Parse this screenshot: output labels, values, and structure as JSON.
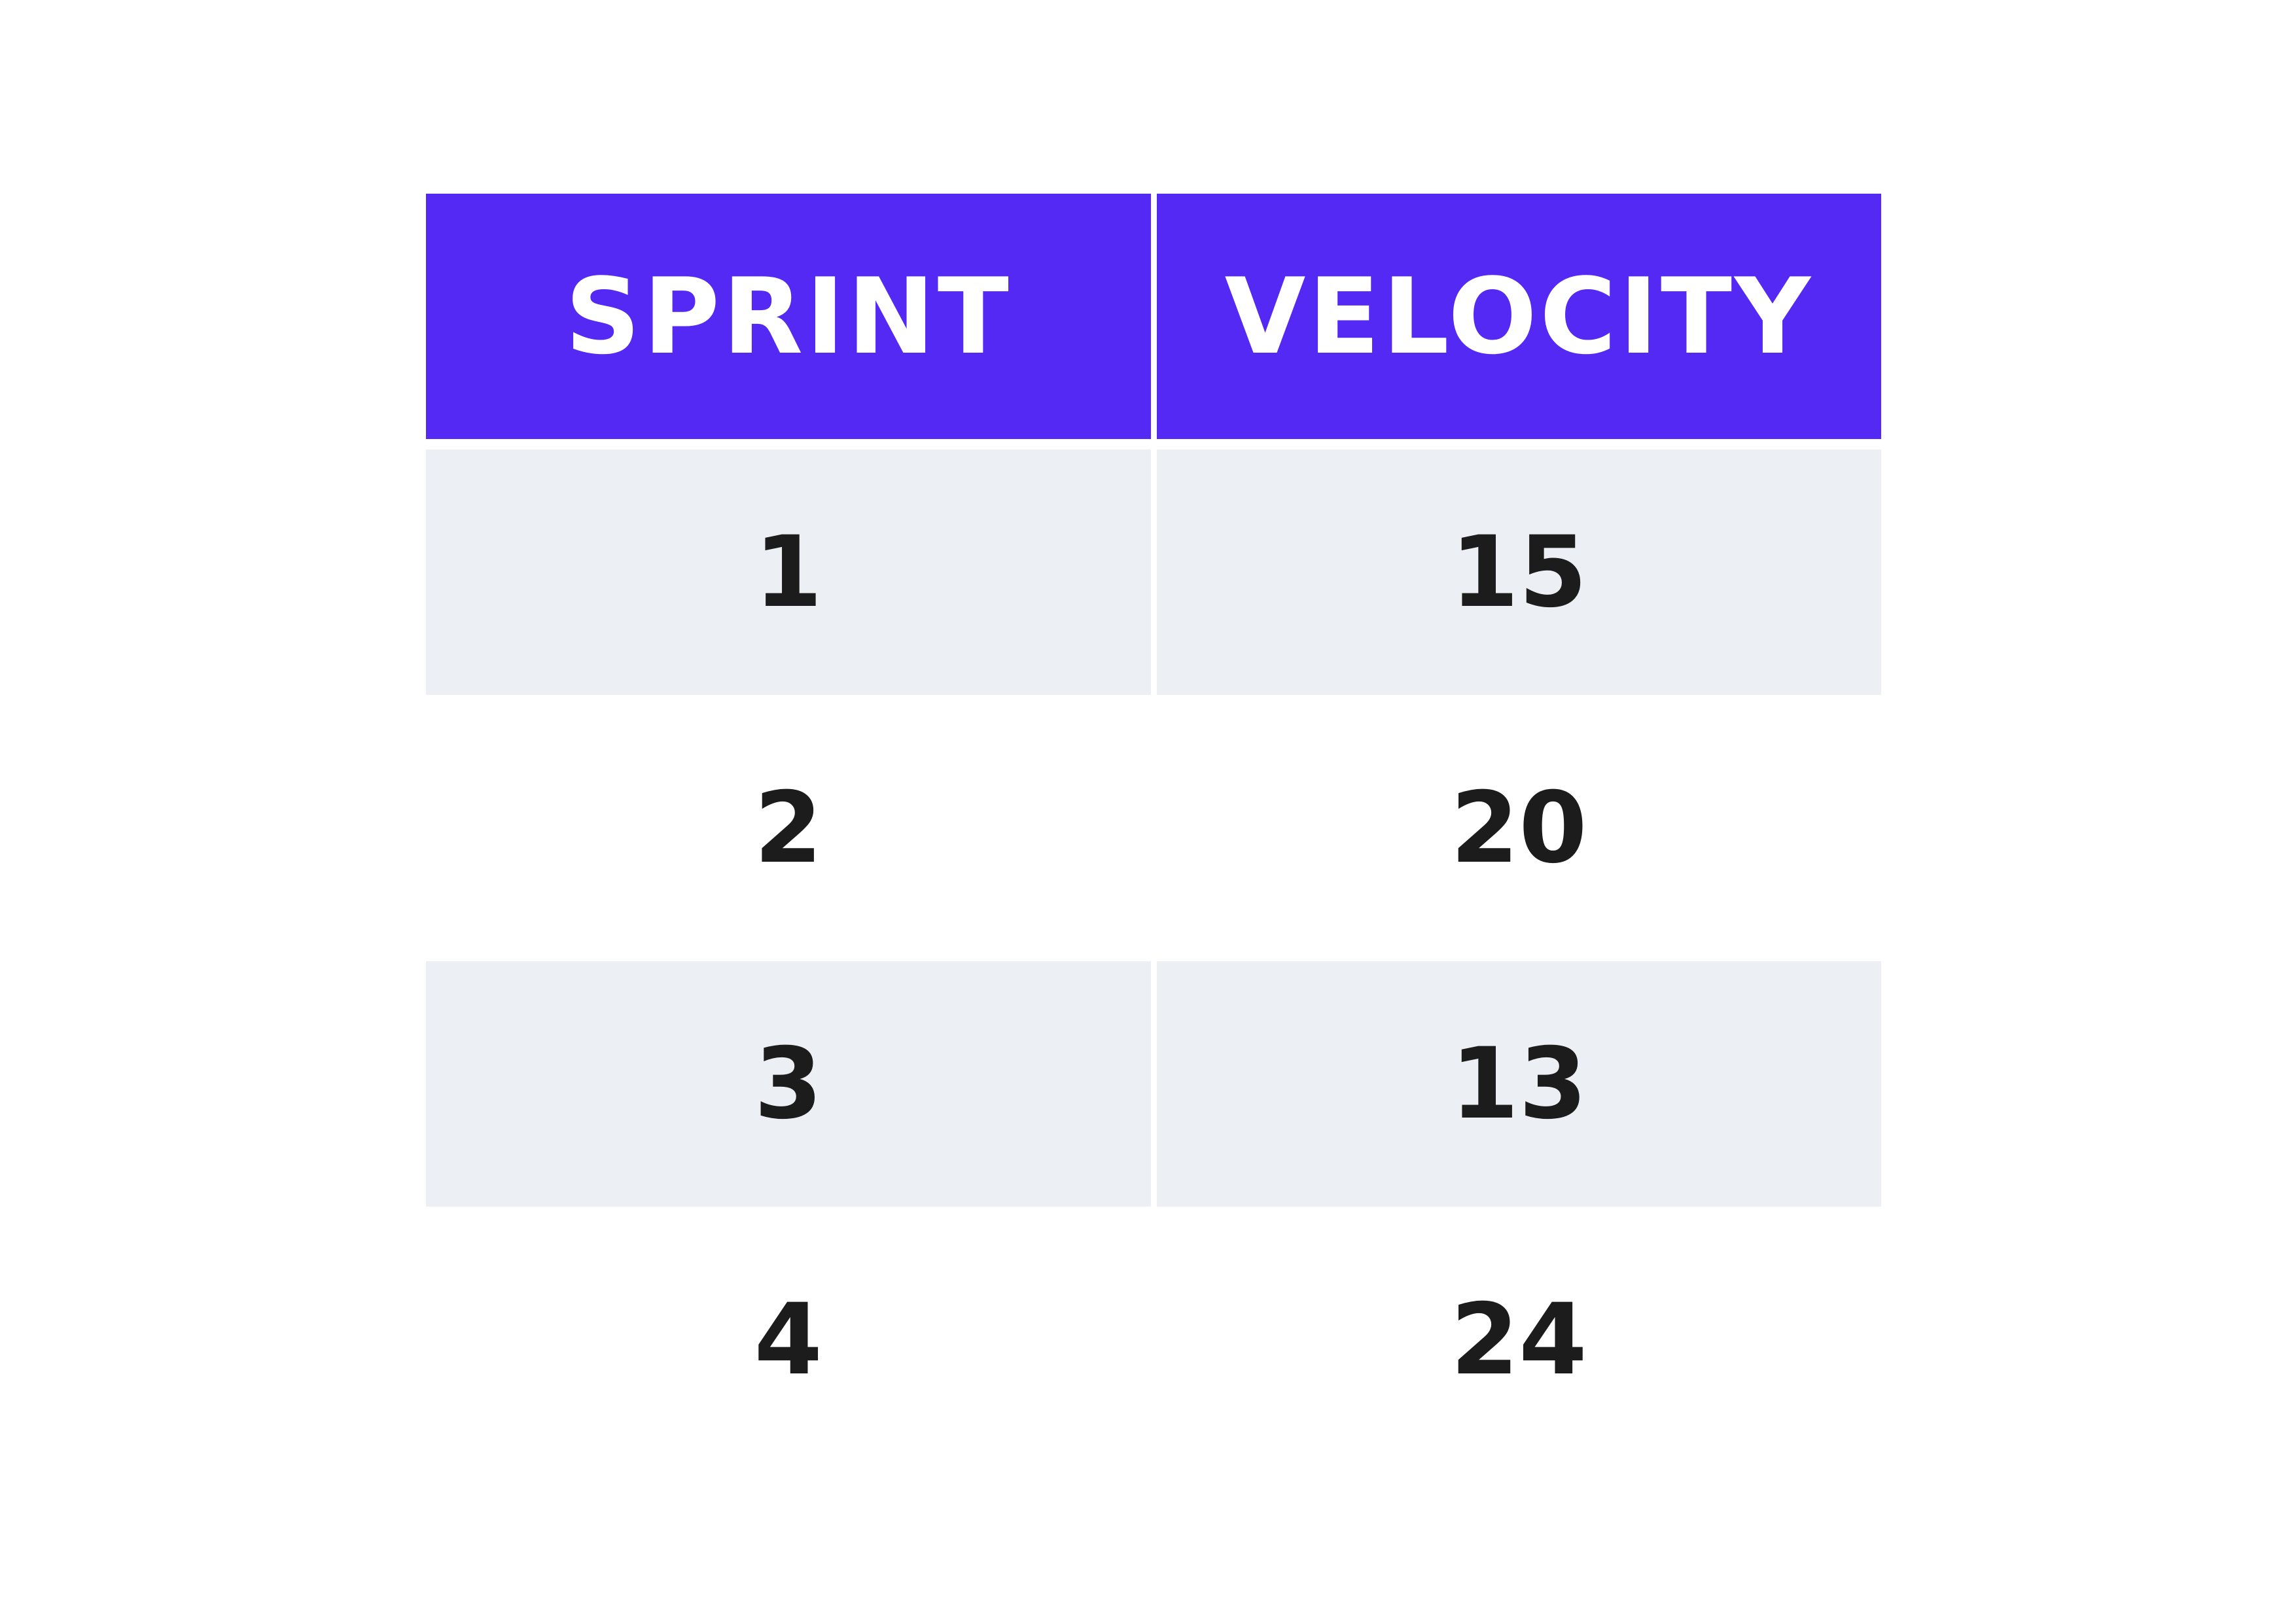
{
  "chart_data": {
    "type": "table",
    "columns": [
      "SPRINT",
      "VELOCITY"
    ],
    "rows": [
      [
        "1",
        "15"
      ],
      [
        "2",
        "20"
      ],
      [
        "3",
        "13"
      ],
      [
        "4",
        "24"
      ]
    ]
  },
  "colors": {
    "header_background": "#5329f3",
    "header_text": "#ffffff",
    "shaded_row_background": "#eceff4",
    "plain_row_background": "#ffffff",
    "value_text": "#1c1c1c"
  }
}
